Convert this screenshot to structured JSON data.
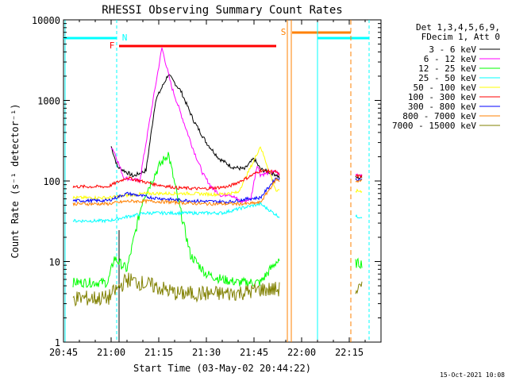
{
  "chart_data": {
    "type": "line",
    "title": "RHESSI Observing Summary Count Rates",
    "xlabel": "Start Time (03-May-02 20:44:22)",
    "ylabel": "Count Rate (s⁻¹ detector⁻¹)",
    "y_scale": "log",
    "ylim": [
      1,
      10000
    ],
    "xlim_minutes": [
      0,
      100
    ],
    "x_tick_labels": [
      "20:45",
      "21:00",
      "21:15",
      "21:30",
      "21:45",
      "22:00",
      "22:15"
    ],
    "x_tick_minutes": [
      0,
      15,
      30,
      45,
      60,
      75,
      90
    ],
    "y_tick_labels": [
      "1",
      "10",
      "100",
      "1000",
      "10000"
    ],
    "y_tick_values": [
      1,
      10,
      100,
      1000,
      10000
    ],
    "legend_header": [
      "Det 1,3,4,5,6,9,",
      "FDecim 1, Att 0"
    ],
    "legend_position": "right",
    "footer_date": "15-Oct-2021 10:08",
    "flags": [
      {
        "label": "N",
        "color": "#00ffff"
      },
      {
        "label": "F",
        "color": "#ff0000"
      },
      {
        "label": "S",
        "color": "#ff8000"
      }
    ],
    "series": [
      {
        "name": "3 - 6 keV",
        "color": "#000000",
        "x": [
          3,
          10,
          15,
          17,
          22,
          26,
          29,
          33,
          37,
          41,
          45,
          49,
          53,
          57,
          60,
          62,
          67,
          68
        ],
        "y": [
          null,
          null,
          270,
          150,
          115,
          135,
          1000,
          2100,
          1300,
          560,
          300,
          190,
          150,
          140,
          190,
          140,
          120,
          110
        ]
      },
      {
        "name": "6 - 12 keV",
        "color": "#ff00ff",
        "x": [
          3,
          10,
          15,
          16,
          19,
          24,
          28,
          31,
          34,
          38,
          41,
          44,
          47,
          50,
          52,
          56,
          59,
          61,
          62,
          67,
          68
        ],
        "y": [
          null,
          null,
          270,
          230,
          110,
          100,
          900,
          4500,
          1500,
          520,
          240,
          120,
          80,
          65,
          70,
          55,
          60,
          160,
          120,
          130,
          120
        ]
      },
      {
        "name": "12 - 25 keV",
        "color": "#00ff00",
        "x": [
          3,
          14,
          16,
          20,
          25,
          30,
          33,
          36,
          40,
          45,
          50,
          55,
          62,
          67,
          68
        ],
        "y": [
          5.5,
          5.5,
          11,
          8,
          60,
          150,
          220,
          60,
          12,
          7,
          6,
          5.5,
          5.5,
          10,
          9.5
        ]
      },
      {
        "name": "25 - 50 keV",
        "color": "#00ffff",
        "x": [
          3,
          14,
          20,
          26,
          32,
          38,
          45,
          50,
          56,
          62,
          67,
          68
        ],
        "y": [
          32,
          32,
          36,
          40,
          40,
          40,
          40,
          40,
          46,
          52,
          38,
          36
        ]
      },
      {
        "name": "50 - 100 keV",
        "color": "#ffff00",
        "x": [
          3,
          14,
          20,
          26,
          32,
          40,
          48,
          55,
          60,
          62,
          67,
          68
        ],
        "y": [
          62,
          62,
          66,
          70,
          70,
          70,
          68,
          72,
          180,
          270,
          75,
          75
        ]
      },
      {
        "name": "100 - 300 keV",
        "color": "#ff0000",
        "x": [
          3,
          14,
          20,
          28,
          36,
          44,
          52,
          58,
          62,
          67,
          68
        ],
        "y": [
          85,
          85,
          110,
          92,
          82,
          80,
          85,
          110,
          135,
          130,
          115
        ]
      },
      {
        "name": "300 - 800 keV",
        "color": "#0000ff",
        "x": [
          3,
          14,
          20,
          28,
          36,
          44,
          52,
          58,
          62,
          67,
          68
        ],
        "y": [
          57,
          57,
          70,
          62,
          58,
          56,
          55,
          60,
          62,
          110,
          105
        ]
      },
      {
        "name": "800 - 7000 keV",
        "color": "#ff8000",
        "x": [
          3,
          14,
          20,
          28,
          36,
          44,
          52,
          58,
          62,
          67,
          68
        ],
        "y": [
          52,
          52,
          56,
          56,
          54,
          52,
          52,
          52,
          54,
          105,
          100
        ]
      },
      {
        "name": "7000 - 15000 keV",
        "color": "#808000",
        "x": [
          3,
          14,
          20,
          28,
          36,
          44,
          52,
          58,
          62,
          67,
          68
        ],
        "y": [
          3.5,
          3.5,
          6,
          5,
          4,
          4,
          4,
          4.2,
          4.5,
          4.5,
          4.5
        ]
      }
    ]
  }
}
